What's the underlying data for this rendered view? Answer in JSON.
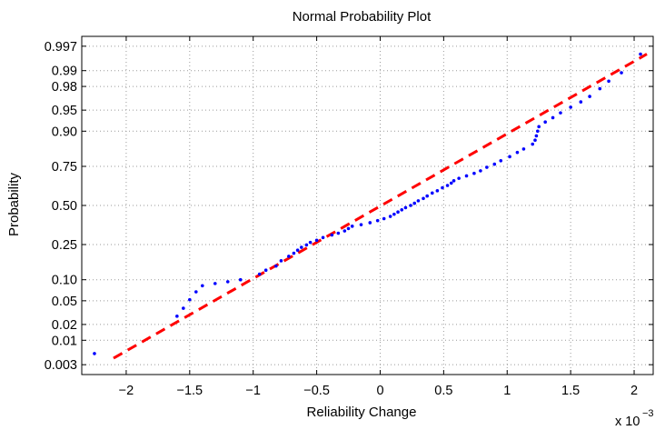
{
  "chart_data": {
    "type": "scatter",
    "title": "Normal Probability Plot",
    "xlabel": "Reliability Change",
    "ylabel": "Probability",
    "x_multiplier_base": "x 10",
    "x_multiplier_exp": "−3",
    "xlim": [
      -2.35,
      2.15
    ],
    "x_ticks": [
      -2,
      -1.5,
      -1,
      -0.5,
      0,
      0.5,
      1,
      1.5,
      2
    ],
    "x_tick_labels": [
      "−2",
      "−1.5",
      "−1",
      "−0.5",
      "0",
      "0.5",
      "1",
      "1.5",
      "2"
    ],
    "y_scale": "normal-probability",
    "y_ticks": [
      0.003,
      0.01,
      0.02,
      0.05,
      0.1,
      0.25,
      0.5,
      0.75,
      0.9,
      0.95,
      0.98,
      0.99,
      0.997
    ],
    "y_tick_labels": [
      "0.003",
      "0.01",
      "0.02",
      "0.05",
      "0.10",
      "0.25",
      "0.50",
      "0.75",
      "0.90",
      "0.95",
      "0.98",
      "0.99",
      "0.997"
    ],
    "grid": true,
    "reference_line": {
      "style": "dashed",
      "color": "#ff0000",
      "points": [
        [
          -2.1,
          0.0042
        ],
        [
          2.1,
          0.9955
        ]
      ]
    },
    "series": [
      {
        "marker": "point",
        "color": "#0000ff",
        "points": [
          [
            -2.25,
            0.0053
          ],
          [
            -1.6,
            0.028
          ],
          [
            -1.55,
            0.038
          ],
          [
            -1.5,
            0.052
          ],
          [
            -1.45,
            0.068
          ],
          [
            -1.4,
            0.083
          ],
          [
            -1.3,
            0.089
          ],
          [
            -1.2,
            0.094
          ],
          [
            -1.1,
            0.1
          ],
          [
            -0.95,
            0.118
          ],
          [
            -0.9,
            0.132
          ],
          [
            -0.82,
            0.148
          ],
          [
            -0.78,
            0.17
          ],
          [
            -0.72,
            0.19
          ],
          [
            -0.68,
            0.205
          ],
          [
            -0.65,
            0.22
          ],
          [
            -0.62,
            0.235
          ],
          [
            -0.58,
            0.248
          ],
          [
            -0.55,
            0.262
          ],
          [
            -0.5,
            0.274
          ],
          [
            -0.45,
            0.29
          ],
          [
            -0.38,
            0.305
          ],
          [
            -0.33,
            0.316
          ],
          [
            -0.28,
            0.33
          ],
          [
            -0.25,
            0.345
          ],
          [
            -0.22,
            0.36
          ],
          [
            -0.15,
            0.37
          ],
          [
            -0.08,
            0.383
          ],
          [
            -0.02,
            0.397
          ],
          [
            0.03,
            0.41
          ],
          [
            0.08,
            0.425
          ],
          [
            0.11,
            0.44
          ],
          [
            0.14,
            0.455
          ],
          [
            0.17,
            0.47
          ],
          [
            0.2,
            0.485
          ],
          [
            0.24,
            0.5
          ],
          [
            0.27,
            0.515
          ],
          [
            0.3,
            0.532
          ],
          [
            0.34,
            0.548
          ],
          [
            0.37,
            0.565
          ],
          [
            0.41,
            0.585
          ],
          [
            0.45,
            0.6
          ],
          [
            0.49,
            0.62
          ],
          [
            0.53,
            0.635
          ],
          [
            0.56,
            0.65
          ],
          [
            0.58,
            0.665
          ],
          [
            0.62,
            0.68
          ],
          [
            0.68,
            0.695
          ],
          [
            0.74,
            0.71
          ],
          [
            0.79,
            0.725
          ],
          [
            0.84,
            0.745
          ],
          [
            0.9,
            0.762
          ],
          [
            0.95,
            0.78
          ],
          [
            1.02,
            0.8
          ],
          [
            1.08,
            0.82
          ],
          [
            1.13,
            0.835
          ],
          [
            1.2,
            0.855
          ],
          [
            1.22,
            0.87
          ],
          [
            1.23,
            0.885
          ],
          [
            1.24,
            0.9
          ],
          [
            1.25,
            0.913
          ],
          [
            1.3,
            0.925
          ],
          [
            1.36,
            0.935
          ],
          [
            1.42,
            0.945
          ],
          [
            1.5,
            0.955
          ],
          [
            1.58,
            0.963
          ],
          [
            1.65,
            0.97
          ],
          [
            1.73,
            0.978
          ],
          [
            1.8,
            0.984
          ],
          [
            1.9,
            0.989
          ],
          [
            2.05,
            0.9955
          ]
        ]
      }
    ]
  }
}
